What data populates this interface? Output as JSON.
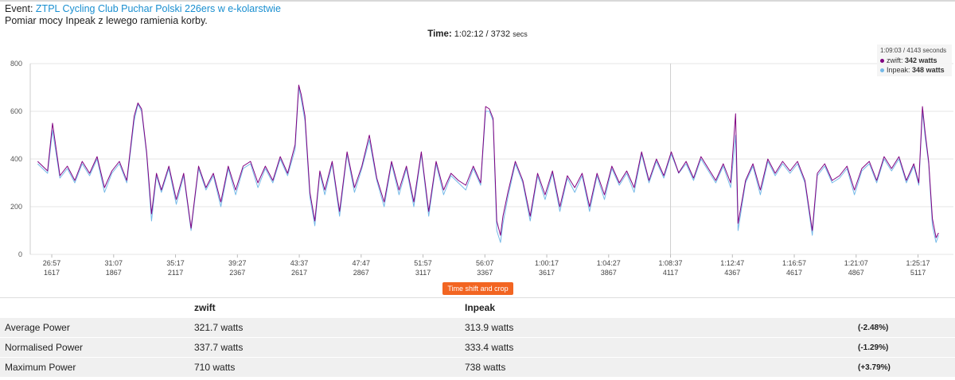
{
  "header": {
    "event_prefix": "Event:",
    "event_title": "ZTPL Cycling Club Puchar Polski 226ers w e-kolarstwie",
    "subtitle": "Pomiar mocy Inpeak z lewego ramienia korby.",
    "time_label": "Time:",
    "time_value": "1:02:12",
    "time_secs": "3732",
    "time_unit": "secs"
  },
  "tooltip": {
    "time": "1:09:03 / 4143 seconds",
    "rows": [
      {
        "name": "zwift",
        "value": "342 watts",
        "color": "#800080"
      },
      {
        "name": "Inpeak",
        "value": "348 watts",
        "color": "#74b9e8"
      }
    ]
  },
  "crop_button": "Time shift and crop",
  "chart_data": {
    "type": "line",
    "x_axis": {
      "range_seconds": [
        1530,
        5260
      ],
      "tick_times": [
        "26:57",
        "31:07",
        "35:17",
        "39:27",
        "43:37",
        "47:47",
        "51:57",
        "56:07",
        "1:00:17",
        "1:04:27",
        "1:08:37",
        "1:12:47",
        "1:16:57",
        "1:21:07",
        "1:25:17"
      ],
      "tick_seconds": [
        "1617",
        "1867",
        "2117",
        "2367",
        "2617",
        "2867",
        "3117",
        "3367",
        "3617",
        "3867",
        "4117",
        "4367",
        "4617",
        "4867",
        "5117"
      ],
      "crosshair_time": "1:08:37"
    },
    "y_axis": {
      "min": 0,
      "max": 800,
      "ticks": [
        "0",
        "200",
        "400",
        "600",
        "800"
      ],
      "grid": true
    },
    "series": [
      {
        "name": "Inpeak",
        "color": "#74b9e8",
        "values": [
          [
            1560,
            380
          ],
          [
            1600,
            340
          ],
          [
            1620,
            520
          ],
          [
            1650,
            320
          ],
          [
            1680,
            360
          ],
          [
            1710,
            300
          ],
          [
            1740,
            380
          ],
          [
            1770,
            330
          ],
          [
            1800,
            400
          ],
          [
            1830,
            260
          ],
          [
            1860,
            340
          ],
          [
            1890,
            380
          ],
          [
            1920,
            300
          ],
          [
            1950,
            560
          ],
          [
            1965,
            630
          ],
          [
            1980,
            600
          ],
          [
            2000,
            420
          ],
          [
            2020,
            140
          ],
          [
            2040,
            330
          ],
          [
            2060,
            260
          ],
          [
            2090,
            360
          ],
          [
            2120,
            210
          ],
          [
            2150,
            330
          ],
          [
            2180,
            100
          ],
          [
            2210,
            360
          ],
          [
            2240,
            270
          ],
          [
            2270,
            330
          ],
          [
            2300,
            200
          ],
          [
            2330,
            360
          ],
          [
            2360,
            250
          ],
          [
            2390,
            360
          ],
          [
            2420,
            380
          ],
          [
            2450,
            280
          ],
          [
            2480,
            360
          ],
          [
            2510,
            300
          ],
          [
            2540,
            400
          ],
          [
            2570,
            330
          ],
          [
            2600,
            440
          ],
          [
            2615,
            700
          ],
          [
            2625,
            650
          ],
          [
            2640,
            560
          ],
          [
            2660,
            240
          ],
          [
            2680,
            120
          ],
          [
            2700,
            340
          ],
          [
            2720,
            250
          ],
          [
            2750,
            380
          ],
          [
            2780,
            160
          ],
          [
            2810,
            420
          ],
          [
            2840,
            260
          ],
          [
            2870,
            360
          ],
          [
            2900,
            480
          ],
          [
            2930,
            310
          ],
          [
            2960,
            200
          ],
          [
            2990,
            380
          ],
          [
            3020,
            250
          ],
          [
            3050,
            360
          ],
          [
            3080,
            200
          ],
          [
            3110,
            420
          ],
          [
            3140,
            160
          ],
          [
            3170,
            380
          ],
          [
            3200,
            250
          ],
          [
            3230,
            330
          ],
          [
            3260,
            300
          ],
          [
            3290,
            270
          ],
          [
            3320,
            360
          ],
          [
            3350,
            290
          ],
          [
            3370,
            600
          ],
          [
            3385,
            600
          ],
          [
            3400,
            560
          ],
          [
            3415,
            100
          ],
          [
            3430,
            50
          ],
          [
            3440,
            130
          ],
          [
            3460,
            240
          ],
          [
            3490,
            380
          ],
          [
            3520,
            300
          ],
          [
            3550,
            140
          ],
          [
            3580,
            330
          ],
          [
            3610,
            230
          ],
          [
            3640,
            340
          ],
          [
            3670,
            180
          ],
          [
            3700,
            320
          ],
          [
            3730,
            260
          ],
          [
            3760,
            330
          ],
          [
            3790,
            180
          ],
          [
            3820,
            330
          ],
          [
            3850,
            230
          ],
          [
            3880,
            360
          ],
          [
            3910,
            290
          ],
          [
            3940,
            340
          ],
          [
            3970,
            260
          ],
          [
            4000,
            420
          ],
          [
            4030,
            300
          ],
          [
            4060,
            390
          ],
          [
            4090,
            320
          ],
          [
            4120,
            420
          ],
          [
            4150,
            340
          ],
          [
            4180,
            380
          ],
          [
            4210,
            310
          ],
          [
            4240,
            400
          ],
          [
            4270,
            350
          ],
          [
            4300,
            300
          ],
          [
            4330,
            370
          ],
          [
            4360,
            280
          ],
          [
            4380,
            500
          ],
          [
            4390,
            100
          ],
          [
            4420,
            300
          ],
          [
            4450,
            370
          ],
          [
            4480,
            250
          ],
          [
            4510,
            390
          ],
          [
            4540,
            330
          ],
          [
            4570,
            380
          ],
          [
            4600,
            340
          ],
          [
            4630,
            380
          ],
          [
            4660,
            300
          ],
          [
            4690,
            80
          ],
          [
            4710,
            330
          ],
          [
            4740,
            370
          ],
          [
            4770,
            300
          ],
          [
            4800,
            320
          ],
          [
            4830,
            360
          ],
          [
            4860,
            250
          ],
          [
            4890,
            350
          ],
          [
            4920,
            380
          ],
          [
            4950,
            300
          ],
          [
            4980,
            400
          ],
          [
            5010,
            350
          ],
          [
            5040,
            400
          ],
          [
            5070,
            300
          ],
          [
            5100,
            370
          ],
          [
            5120,
            290
          ],
          [
            5135,
            600
          ],
          [
            5145,
            500
          ],
          [
            5160,
            380
          ],
          [
            5175,
            120
          ],
          [
            5190,
            50
          ],
          [
            5200,
            80
          ]
        ]
      },
      {
        "name": "zwift",
        "color": "#800080",
        "values": [
          [
            1560,
            390
          ],
          [
            1600,
            350
          ],
          [
            1620,
            550
          ],
          [
            1650,
            330
          ],
          [
            1680,
            370
          ],
          [
            1710,
            310
          ],
          [
            1740,
            390
          ],
          [
            1770,
            340
          ],
          [
            1800,
            410
          ],
          [
            1830,
            280
          ],
          [
            1860,
            350
          ],
          [
            1890,
            390
          ],
          [
            1920,
            310
          ],
          [
            1950,
            580
          ],
          [
            1965,
            635
          ],
          [
            1980,
            610
          ],
          [
            2000,
            430
          ],
          [
            2020,
            170
          ],
          [
            2040,
            340
          ],
          [
            2060,
            270
          ],
          [
            2090,
            370
          ],
          [
            2120,
            230
          ],
          [
            2150,
            340
          ],
          [
            2180,
            110
          ],
          [
            2210,
            370
          ],
          [
            2240,
            280
          ],
          [
            2270,
            340
          ],
          [
            2300,
            220
          ],
          [
            2330,
            370
          ],
          [
            2360,
            270
          ],
          [
            2390,
            370
          ],
          [
            2420,
            390
          ],
          [
            2450,
            300
          ],
          [
            2480,
            370
          ],
          [
            2510,
            310
          ],
          [
            2540,
            410
          ],
          [
            2570,
            340
          ],
          [
            2600,
            460
          ],
          [
            2615,
            710
          ],
          [
            2625,
            670
          ],
          [
            2640,
            580
          ],
          [
            2660,
            260
          ],
          [
            2680,
            140
          ],
          [
            2700,
            350
          ],
          [
            2720,
            270
          ],
          [
            2750,
            390
          ],
          [
            2780,
            180
          ],
          [
            2810,
            430
          ],
          [
            2840,
            280
          ],
          [
            2870,
            370
          ],
          [
            2900,
            500
          ],
          [
            2930,
            320
          ],
          [
            2960,
            220
          ],
          [
            2990,
            390
          ],
          [
            3020,
            270
          ],
          [
            3050,
            370
          ],
          [
            3080,
            220
          ],
          [
            3110,
            430
          ],
          [
            3140,
            180
          ],
          [
            3170,
            390
          ],
          [
            3200,
            270
          ],
          [
            3230,
            340
          ],
          [
            3260,
            310
          ],
          [
            3290,
            290
          ],
          [
            3320,
            370
          ],
          [
            3350,
            300
          ],
          [
            3370,
            620
          ],
          [
            3385,
            610
          ],
          [
            3400,
            570
          ],
          [
            3415,
            140
          ],
          [
            3430,
            80
          ],
          [
            3440,
            160
          ],
          [
            3460,
            260
          ],
          [
            3490,
            390
          ],
          [
            3520,
            310
          ],
          [
            3550,
            160
          ],
          [
            3580,
            340
          ],
          [
            3610,
            250
          ],
          [
            3640,
            350
          ],
          [
            3670,
            200
          ],
          [
            3700,
            330
          ],
          [
            3730,
            280
          ],
          [
            3760,
            340
          ],
          [
            3790,
            200
          ],
          [
            3820,
            340
          ],
          [
            3850,
            250
          ],
          [
            3880,
            370
          ],
          [
            3910,
            300
          ],
          [
            3940,
            350
          ],
          [
            3970,
            280
          ],
          [
            4000,
            430
          ],
          [
            4030,
            310
          ],
          [
            4060,
            400
          ],
          [
            4090,
            330
          ],
          [
            4120,
            430
          ],
          [
            4150,
            342
          ],
          [
            4180,
            390
          ],
          [
            4210,
            320
          ],
          [
            4240,
            410
          ],
          [
            4270,
            360
          ],
          [
            4300,
            310
          ],
          [
            4330,
            380
          ],
          [
            4360,
            300
          ],
          [
            4380,
            590
          ],
          [
            4390,
            130
          ],
          [
            4420,
            310
          ],
          [
            4450,
            380
          ],
          [
            4480,
            270
          ],
          [
            4510,
            400
          ],
          [
            4540,
            340
          ],
          [
            4570,
            390
          ],
          [
            4600,
            350
          ],
          [
            4630,
            390
          ],
          [
            4660,
            310
          ],
          [
            4690,
            100
          ],
          [
            4710,
            340
          ],
          [
            4740,
            380
          ],
          [
            4770,
            310
          ],
          [
            4800,
            330
          ],
          [
            4830,
            370
          ],
          [
            4860,
            270
          ],
          [
            4890,
            360
          ],
          [
            4920,
            390
          ],
          [
            4950,
            310
          ],
          [
            4980,
            410
          ],
          [
            5010,
            360
          ],
          [
            5040,
            410
          ],
          [
            5070,
            310
          ],
          [
            5100,
            380
          ],
          [
            5120,
            300
          ],
          [
            5135,
            620
          ],
          [
            5145,
            520
          ],
          [
            5160,
            390
          ],
          [
            5175,
            150
          ],
          [
            5190,
            70
          ],
          [
            5200,
            90
          ]
        ]
      }
    ]
  },
  "stats": {
    "headers": [
      "",
      "zwift",
      "Inpeak",
      ""
    ],
    "rows": [
      {
        "label": "Average Power",
        "zwift": "321.7 watts",
        "inpeak": "313.9 watts",
        "diff": "(-2.48%)"
      },
      {
        "label": "Normalised Power",
        "zwift": "337.7 watts",
        "inpeak": "333.4 watts",
        "diff": "(-1.29%)"
      },
      {
        "label": "Maximum Power",
        "zwift": "710 watts",
        "inpeak": "738 watts",
        "diff": "(+3.79%)"
      }
    ]
  }
}
